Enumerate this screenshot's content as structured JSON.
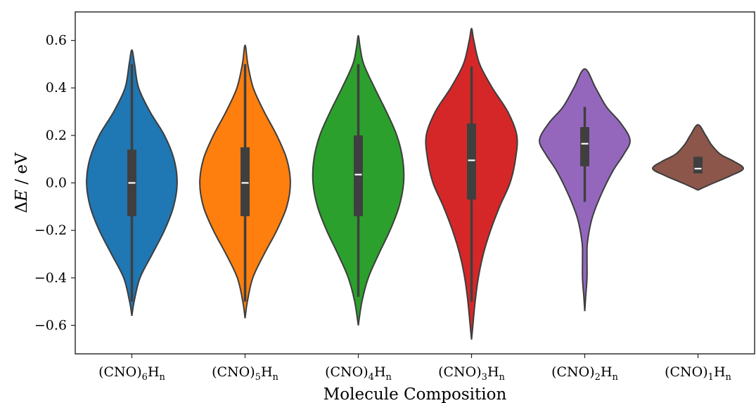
{
  "chart_data": {
    "type": "violin",
    "xlabel": "Molecule Composition",
    "ylabel": "ΔE / eV",
    "ylim": [
      -0.72,
      0.72
    ],
    "yticks": [
      -0.6,
      -0.4,
      -0.2,
      0.0,
      0.2,
      0.4,
      0.6
    ],
    "ytick_labels": [
      "−0.6",
      "−0.4",
      "−0.2",
      "0.0",
      "0.2",
      "0.4",
      "0.6"
    ],
    "grid": false,
    "series": [
      {
        "label": {
          "prefix": "(CNO)",
          "sub1": "6",
          "mid": "H",
          "sub2": "n"
        },
        "color": "#1f77b4",
        "median": 0.0,
        "q1": -0.14,
        "q3": 0.14,
        "whisker_low": -0.5,
        "whisker_high": 0.5,
        "density": [
          [
            -0.56,
            0.0
          ],
          [
            -0.5,
            0.05
          ],
          [
            -0.4,
            0.18
          ],
          [
            -0.3,
            0.45
          ],
          [
            -0.2,
            0.72
          ],
          [
            -0.1,
            0.92
          ],
          [
            0.0,
            1.0
          ],
          [
            0.1,
            0.93
          ],
          [
            0.2,
            0.72
          ],
          [
            0.3,
            0.4
          ],
          [
            0.4,
            0.15
          ],
          [
            0.5,
            0.06
          ],
          [
            0.56,
            0.0
          ]
        ]
      },
      {
        "label": {
          "prefix": "(CNO)",
          "sub1": "5",
          "mid": "H",
          "sub2": "n"
        },
        "color": "#ff7f0e",
        "median": 0.0,
        "q1": -0.14,
        "q3": 0.15,
        "whisker_low": -0.5,
        "whisker_high": 0.5,
        "density": [
          [
            -0.57,
            0.0
          ],
          [
            -0.5,
            0.05
          ],
          [
            -0.4,
            0.17
          ],
          [
            -0.3,
            0.42
          ],
          [
            -0.2,
            0.7
          ],
          [
            -0.1,
            0.92
          ],
          [
            0.0,
            1.0
          ],
          [
            0.1,
            0.92
          ],
          [
            0.2,
            0.7
          ],
          [
            0.3,
            0.42
          ],
          [
            0.4,
            0.18
          ],
          [
            0.5,
            0.06
          ],
          [
            0.58,
            0.0
          ]
        ]
      },
      {
        "label": {
          "prefix": "(CNO)",
          "sub1": "4",
          "mid": "H",
          "sub2": "n"
        },
        "color": "#2ca02c",
        "median": 0.035,
        "q1": -0.14,
        "q3": 0.2,
        "whisker_low": -0.48,
        "whisker_high": 0.5,
        "density": [
          [
            -0.6,
            0.0
          ],
          [
            -0.5,
            0.08
          ],
          [
            -0.4,
            0.22
          ],
          [
            -0.3,
            0.45
          ],
          [
            -0.2,
            0.7
          ],
          [
            -0.1,
            0.9
          ],
          [
            0.0,
            1.0
          ],
          [
            0.1,
            0.98
          ],
          [
            0.2,
            0.85
          ],
          [
            0.3,
            0.62
          ],
          [
            0.4,
            0.36
          ],
          [
            0.5,
            0.12
          ],
          [
            0.57,
            0.04
          ],
          [
            0.62,
            0.0
          ]
        ]
      },
      {
        "label": {
          "prefix": "(CNO)",
          "sub1": "3",
          "mid": "H",
          "sub2": "n"
        },
        "color": "#d62728",
        "median": 0.095,
        "q1": -0.07,
        "q3": 0.25,
        "whisker_low": -0.5,
        "whisker_high": 0.49,
        "density": [
          [
            -0.66,
            0.0
          ],
          [
            -0.6,
            0.03
          ],
          [
            -0.5,
            0.08
          ],
          [
            -0.4,
            0.15
          ],
          [
            -0.3,
            0.26
          ],
          [
            -0.2,
            0.42
          ],
          [
            -0.1,
            0.62
          ],
          [
            0.0,
            0.85
          ],
          [
            0.1,
            0.97
          ],
          [
            0.2,
            1.0
          ],
          [
            0.3,
            0.8
          ],
          [
            0.4,
            0.46
          ],
          [
            0.5,
            0.18
          ],
          [
            0.6,
            0.05
          ],
          [
            0.65,
            0.0
          ]
        ]
      },
      {
        "label": {
          "prefix": "(CNO)",
          "sub1": "2",
          "mid": "H",
          "sub2": "n"
        },
        "color": "#9467bd",
        "median": 0.165,
        "q1": 0.07,
        "q3": 0.235,
        "whisker_low": -0.08,
        "whisker_high": 0.32,
        "density": [
          [
            -0.54,
            0.0
          ],
          [
            -0.48,
            0.02
          ],
          [
            -0.4,
            0.05
          ],
          [
            -0.32,
            0.05
          ],
          [
            -0.25,
            0.06
          ],
          [
            -0.15,
            0.16
          ],
          [
            -0.05,
            0.36
          ],
          [
            0.05,
            0.62
          ],
          [
            0.12,
            0.86
          ],
          [
            0.18,
            1.0
          ],
          [
            0.25,
            0.8
          ],
          [
            0.32,
            0.48
          ],
          [
            0.4,
            0.24
          ],
          [
            0.48,
            0.0
          ]
        ]
      },
      {
        "label": {
          "prefix": "(CNO)",
          "sub1": "1",
          "mid": "H",
          "sub2": "n"
        },
        "color": "#8c564b",
        "median": 0.06,
        "q1": 0.04,
        "q3": 0.11,
        "whisker_low": 0.04,
        "whisker_high": 0.11,
        "density": [
          [
            -0.03,
            0.0
          ],
          [
            0.0,
            0.35
          ],
          [
            0.03,
            0.72
          ],
          [
            0.06,
            1.0
          ],
          [
            0.09,
            0.8
          ],
          [
            0.12,
            0.5
          ],
          [
            0.16,
            0.3
          ],
          [
            0.2,
            0.17
          ],
          [
            0.245,
            0.0
          ]
        ]
      }
    ]
  }
}
